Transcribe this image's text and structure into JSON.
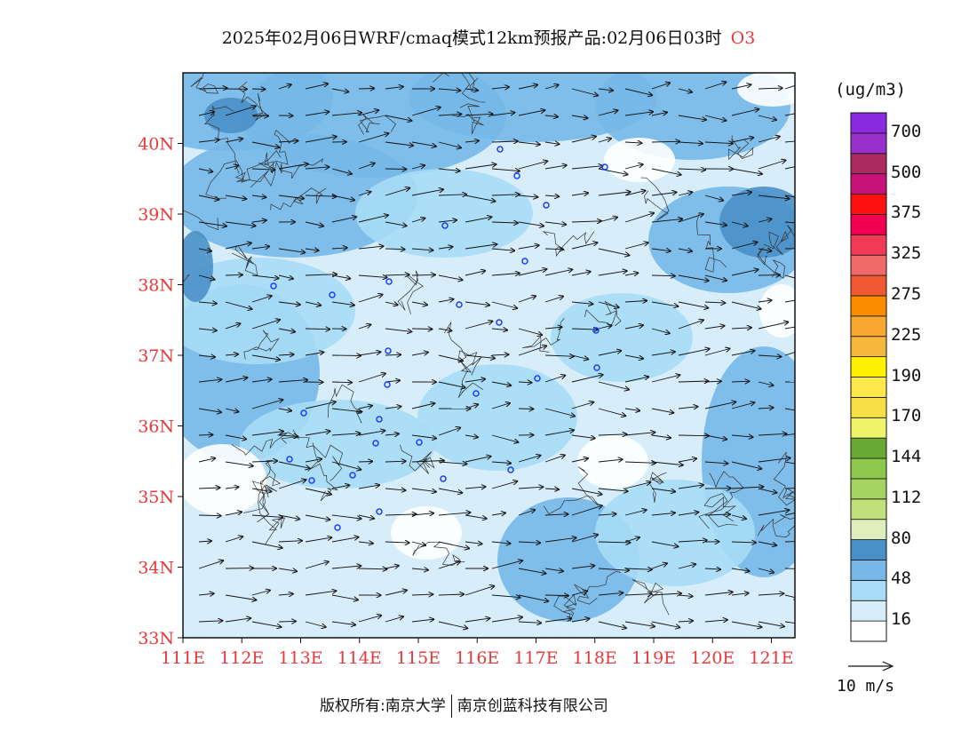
{
  "title": {
    "text": "2025年02月06日WRF/cmaq模式12km预报产品:02月06日03时",
    "pollutant": "O3"
  },
  "map": {
    "lon_range": [
      111,
      121.4
    ],
    "lat_range": [
      33,
      41
    ],
    "x_ticks": [
      "111E",
      "112E",
      "113E",
      "114E",
      "115E",
      "116E",
      "117E",
      "118E",
      "119E",
      "120E",
      "121E"
    ],
    "y_ticks": [
      "33N",
      "34N",
      "35N",
      "36N",
      "37N",
      "38N",
      "39N",
      "40N"
    ],
    "background_color": "#d7eefa",
    "wind_vectors": "arrows pointing mostly east / east-southeast across the domain",
    "station_marker_color": "#1a3cff"
  },
  "legend": {
    "unit": "(ug/m3)",
    "colors": [
      "#ffffff",
      "#d7eefa",
      "#a8dcf6",
      "#76b8e8",
      "#4a90c8",
      "#dfeebd",
      "#c2e07a",
      "#a5d462",
      "#8cc84a",
      "#6aa834",
      "#eef46a",
      "#f6e046",
      "#fde84c",
      "#fff200",
      "#f7b63c",
      "#f8a830",
      "#fb8c00",
      "#ef5a30",
      "#f06a6a",
      "#f03a56",
      "#f00050",
      "#ff1010",
      "#c8127a",
      "#ab2a60",
      "#9a30cc",
      "#8a2ae0"
    ],
    "labels": [
      "16",
      "48",
      "80",
      "112",
      "144",
      "170",
      "190",
      "225",
      "275",
      "325",
      "375",
      "500",
      "700"
    ]
  },
  "wind_reference": {
    "label": "10 m/s"
  },
  "footer": {
    "left": "版权所有:南京大学",
    "right": "南京创蓝科技有限公司"
  }
}
